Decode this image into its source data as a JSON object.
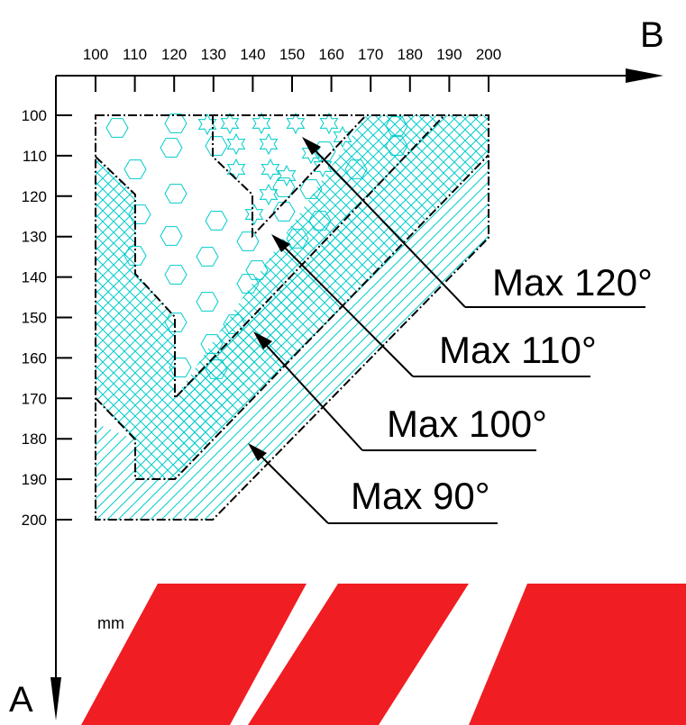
{
  "axes": {
    "horizontal_name": "B",
    "vertical_name": "A",
    "unit": "mm",
    "b_ticks": [
      "100",
      "110",
      "120",
      "130",
      "140",
      "150",
      "160",
      "170",
      "180",
      "190",
      "200"
    ],
    "a_ticks": [
      "100",
      "110",
      "120",
      "130",
      "140",
      "150",
      "160",
      "170",
      "180",
      "190",
      "200"
    ]
  },
  "zones": [
    {
      "label": "Max 120°",
      "pattern": "star-icon",
      "color": "#00cccc"
    },
    {
      "label": "Max 110°",
      "pattern": "hexagon-icon",
      "color": "#00cccc"
    },
    {
      "label": "Max 100°",
      "pattern": "crosshatch",
      "color": "#00cccc"
    },
    {
      "label": "Max 90°",
      "pattern": "diagonal-hatch",
      "color": "#00cccc"
    }
  ],
  "watermark_color": "#f01d23"
}
